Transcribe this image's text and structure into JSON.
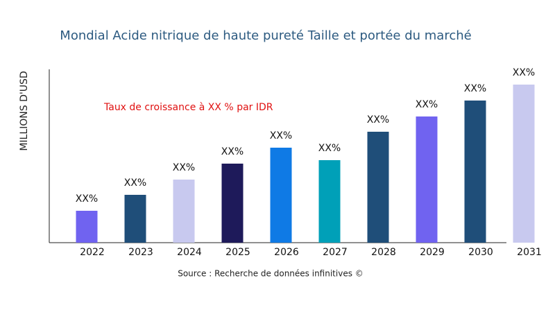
{
  "chart_data": {
    "type": "bar",
    "title": "Mondial Acide nitrique de haute pureté Taille et portée du marché",
    "y_label": "MILLIONS D'USD",
    "annotation": "Taux de croissance à XX % par IDR",
    "source": "Source : Recherche de données infinitives ©",
    "categories": [
      "2022",
      "2023",
      "2024",
      "2025",
      "2026",
      "2027",
      "2028",
      "2029",
      "2030",
      "2031"
    ],
    "values": [
      46,
      69,
      91,
      114,
      137,
      119,
      160,
      182,
      205,
      228
    ],
    "value_labels": [
      "XX%",
      "XX%",
      "XX%",
      "XX%",
      "XX%",
      "XX%",
      "XX%",
      "XX%",
      "XX%",
      "XX%"
    ],
    "colors": [
      "#7063f0",
      "#1f4e79",
      "#c8c9ef",
      "#1e1a5a",
      "#0f7ae5",
      "#00a0b8",
      "#1f4e79",
      "#7063f0",
      "#1f4e79",
      "#c8c9ef"
    ]
  }
}
